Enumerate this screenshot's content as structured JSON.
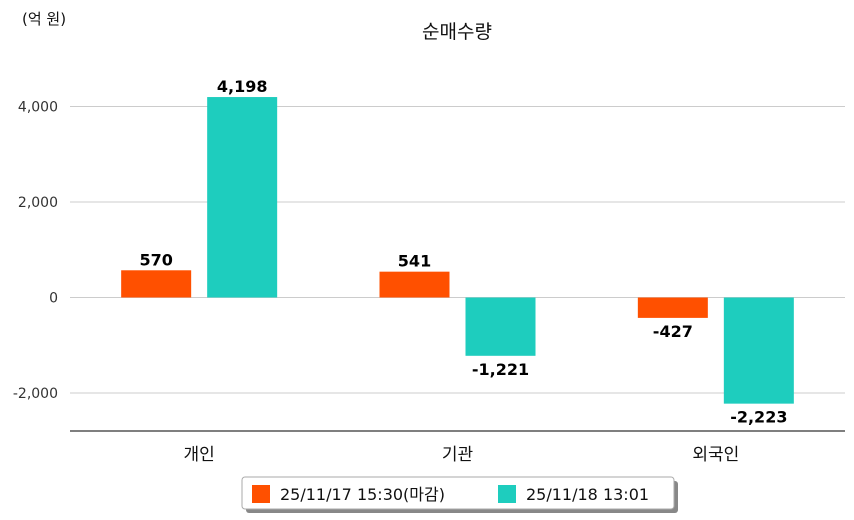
{
  "chart_data": {
    "type": "bar",
    "title": "순매수량",
    "unit": "(억 원)",
    "categories": [
      "개인",
      "기관",
      "외국인"
    ],
    "series": [
      {
        "name": "25/11/17 15:30(마감)",
        "color": "#ff5000",
        "values": [
          570,
          541,
          -427
        ],
        "labels": [
          "570",
          "541",
          "-427"
        ]
      },
      {
        "name": "25/11/18 13:01",
        "color": "#1ecdbe",
        "values": [
          4198,
          -1221,
          -2223
        ],
        "labels": [
          "4,198",
          "-1,221",
          "-2,223"
        ]
      }
    ],
    "yticks": [
      4000,
      2000,
      0,
      -2000
    ],
    "ytick_labels": [
      "4,000",
      "2,000",
      "0",
      "-2,000"
    ],
    "ylim": [
      -2800,
      4400
    ],
    "grid": true,
    "legend_position": "bottom"
  }
}
